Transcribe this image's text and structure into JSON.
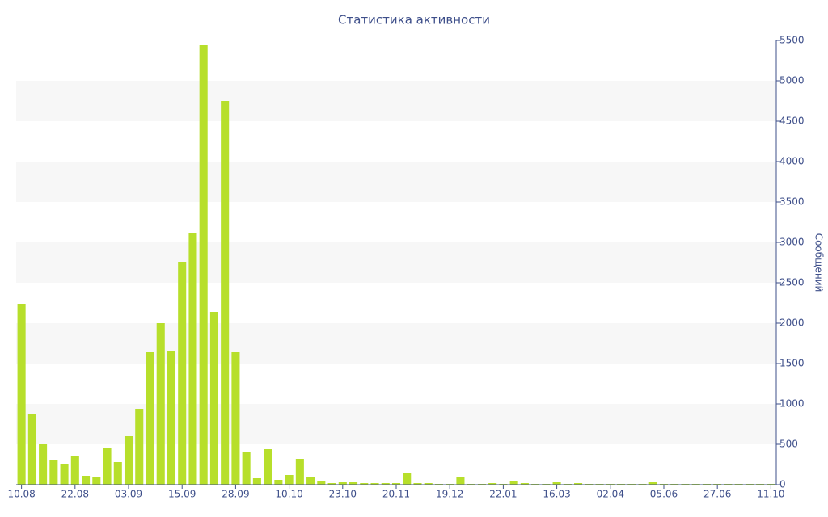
{
  "chart_data": {
    "type": "bar",
    "title": "Статистика активности",
    "y_label": "Сообщений",
    "categories": [
      "10.08",
      null,
      null,
      null,
      null,
      "22.08",
      null,
      null,
      null,
      null,
      "03.09",
      null,
      null,
      null,
      null,
      "15.09",
      null,
      null,
      null,
      null,
      "28.09",
      null,
      null,
      null,
      null,
      "10.10",
      null,
      null,
      null,
      null,
      "23.10",
      null,
      null,
      null,
      null,
      "20.11",
      null,
      null,
      null,
      null,
      "19.12",
      null,
      null,
      null,
      null,
      "22.01",
      null,
      null,
      null,
      null,
      "16.03",
      null,
      null,
      null,
      null,
      "02.04",
      null,
      null,
      null,
      null,
      "05.06",
      null,
      null,
      null,
      null,
      "27.06",
      null,
      null,
      null,
      null,
      "11.10"
    ],
    "values": [
      2240,
      870,
      500,
      310,
      260,
      350,
      110,
      100,
      450,
      280,
      600,
      940,
      1640,
      2000,
      1650,
      2760,
      3120,
      5440,
      2140,
      4750,
      1640,
      400,
      80,
      440,
      60,
      120,
      320,
      90,
      50,
      20,
      30,
      30,
      20,
      20,
      20,
      20,
      140,
      20,
      20,
      10,
      10,
      100,
      10,
      10,
      20,
      10,
      50,
      20,
      10,
      10,
      30,
      10,
      20,
      10,
      10,
      10,
      10,
      10,
      10,
      30,
      10,
      10,
      10,
      10,
      10,
      10,
      10,
      10,
      10,
      10,
      10
    ],
    "color": "#b7df2b",
    "ylim": [
      0,
      5500
    ],
    "yticks": [
      0,
      500,
      1000,
      1500,
      2000,
      2500,
      3000,
      3500,
      4000,
      4500,
      5000,
      5500
    ],
    "y_axis_side": "right",
    "grid_bands": true
  }
}
